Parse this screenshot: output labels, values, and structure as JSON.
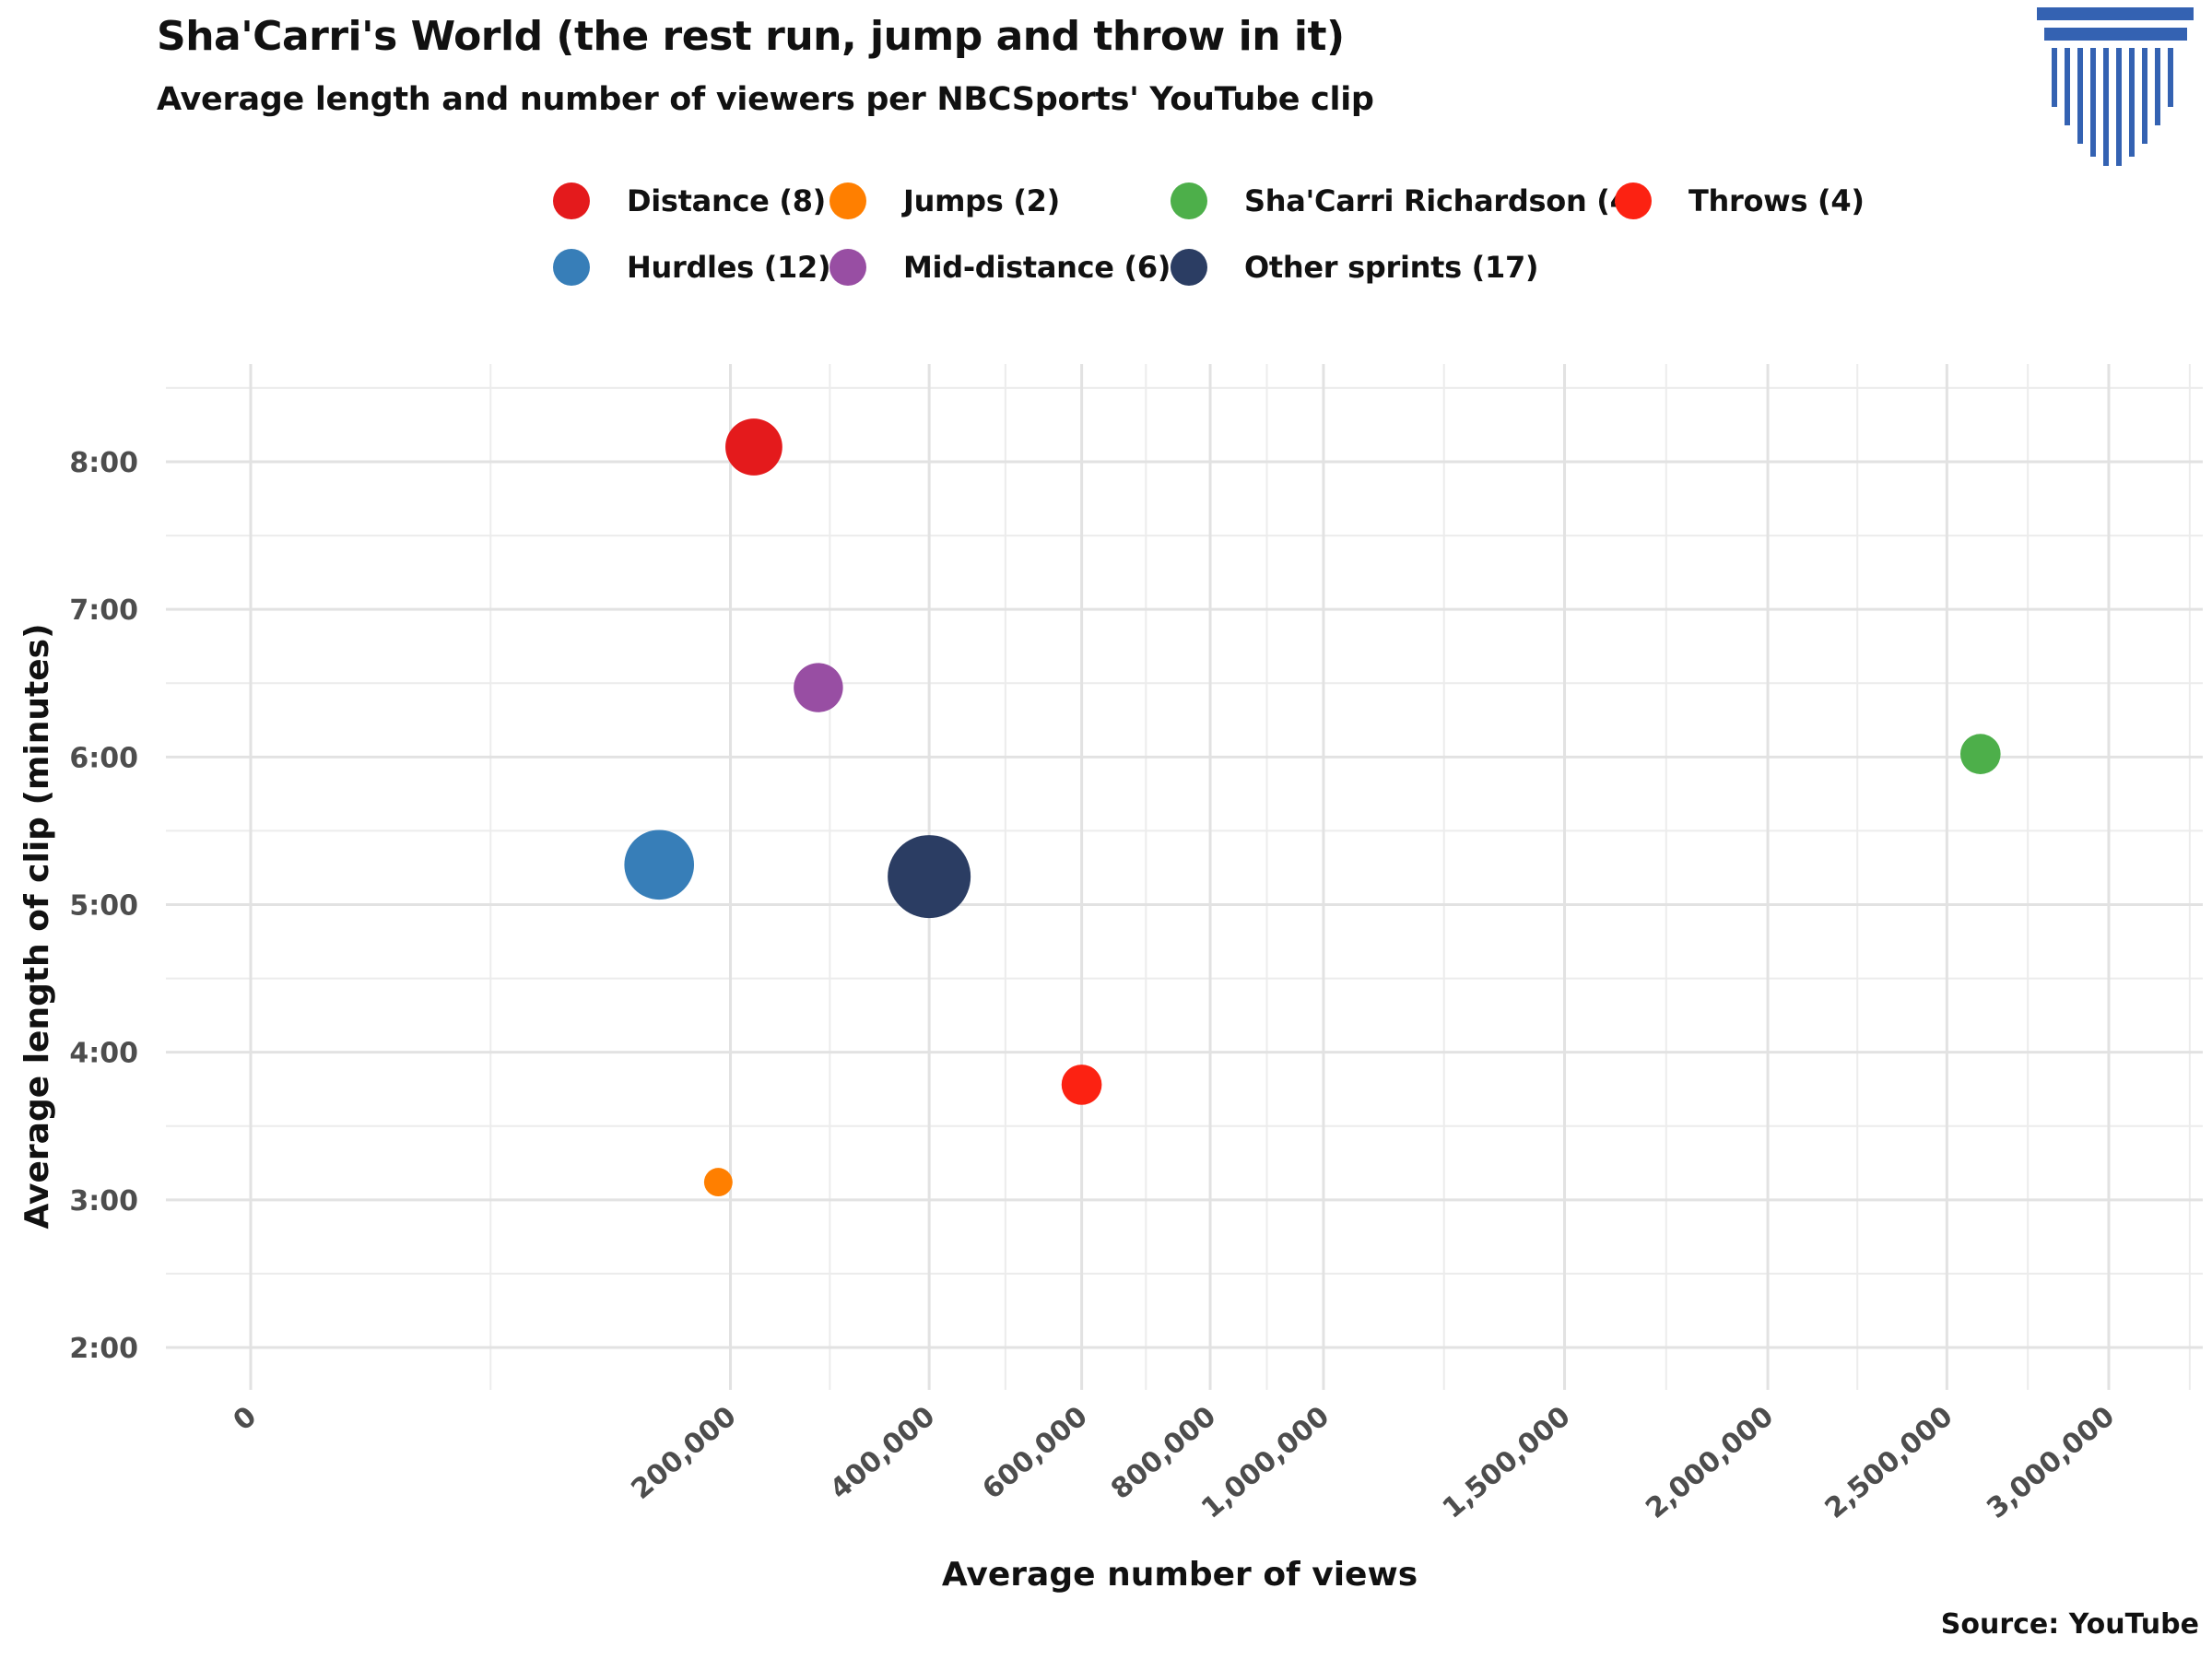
{
  "chart_data": {
    "type": "scatter",
    "title": "Sha'Carri's World (the rest run, jump and throw in it)",
    "subtitle": "Average length and number of viewers per NBCSports' YouTube clip",
    "xlabel": "Average number of views",
    "ylabel": "Average length of clip (minutes)",
    "source": "Source: YouTube",
    "x_ticks": [
      0,
      200000,
      400000,
      600000,
      800000,
      1000000,
      1500000,
      2000000,
      2500000,
      3000000
    ],
    "x_tick_labels": [
      "0",
      "200,000",
      "400,000",
      "600,000",
      "800,000",
      "1,000,000",
      "1,500,000",
      "2,000,000",
      "2,500,000",
      "3,000,000"
    ],
    "y_ticks": [
      2,
      3,
      4,
      5,
      6,
      7,
      8
    ],
    "y_tick_labels": [
      "2:00",
      "3:00",
      "4:00",
      "5:00",
      "6:00",
      "7:00",
      "8:00"
    ],
    "xlim": [
      -100000,
      3100000
    ],
    "ylim": [
      1.7,
      8.6
    ],
    "x_scale": "sqrt",
    "grid": true,
    "legend_position": "top",
    "series": [
      {
        "name": "Distance",
        "label": "Distance (8)",
        "count": 8,
        "color": "#e41a1c",
        "x": 220000,
        "y": 8.1
      },
      {
        "name": "Hurdles",
        "label": "Hurdles (12)",
        "count": 12,
        "color": "#377eb8",
        "x": 145000,
        "y": 5.27
      },
      {
        "name": "Jumps",
        "label": "Jumps (2)",
        "count": 2,
        "color": "#ff7f00",
        "x": 190000,
        "y": 3.12
      },
      {
        "name": "Mid-distance",
        "label": "Mid-distance (6)",
        "count": 6,
        "color": "#984ea3",
        "x": 280000,
        "y": 6.47
      },
      {
        "name": "Sha'Carri Richardson",
        "label": "Sha'Carri Richardson (4)",
        "count": 4,
        "color": "#4daf4a",
        "x": 2600000,
        "y": 6.02
      },
      {
        "name": "Other sprints",
        "label": "Other sprints (17)",
        "count": 17,
        "color": "#2b3d63",
        "x": 400000,
        "y": 5.19
      },
      {
        "name": "Throws",
        "label": "Throws (4)",
        "count": 4,
        "color": "#fc2212",
        "x": 600000,
        "y": 3.78
      }
    ]
  },
  "logo": {
    "name": "columns-logo-icon",
    "color": "#3462b2"
  }
}
